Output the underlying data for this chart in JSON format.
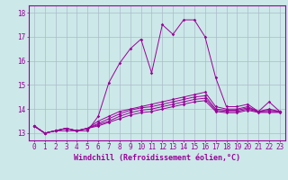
{
  "x": [
    0,
    1,
    2,
    3,
    4,
    5,
    6,
    7,
    8,
    9,
    10,
    11,
    12,
    13,
    14,
    15,
    16,
    17,
    18,
    19,
    20,
    21,
    22,
    23
  ],
  "line1": [
    13.3,
    13.0,
    13.1,
    13.1,
    13.1,
    13.1,
    13.7,
    15.1,
    15.9,
    16.5,
    16.9,
    15.5,
    17.5,
    17.1,
    17.7,
    17.7,
    17.0,
    15.3,
    14.1,
    14.1,
    14.2,
    13.9,
    14.3,
    13.9
  ],
  "line2": [
    13.3,
    13.0,
    13.1,
    13.2,
    13.1,
    13.2,
    13.5,
    13.7,
    13.9,
    14.0,
    14.1,
    14.2,
    14.3,
    14.4,
    14.5,
    14.6,
    14.7,
    14.1,
    14.0,
    14.0,
    14.1,
    13.9,
    14.0,
    13.9
  ],
  "line3": [
    13.3,
    13.0,
    13.1,
    13.2,
    13.1,
    13.2,
    13.4,
    13.6,
    13.8,
    13.95,
    14.05,
    14.1,
    14.2,
    14.3,
    14.4,
    14.5,
    14.55,
    14.0,
    13.95,
    13.95,
    14.05,
    13.9,
    13.95,
    13.9
  ],
  "line4": [
    13.3,
    13.0,
    13.1,
    13.2,
    13.1,
    13.2,
    13.35,
    13.5,
    13.7,
    13.85,
    13.95,
    14.0,
    14.1,
    14.2,
    14.3,
    14.4,
    14.45,
    13.95,
    13.9,
    13.9,
    14.0,
    13.88,
    13.9,
    13.88
  ],
  "line5": [
    13.3,
    13.0,
    13.1,
    13.2,
    13.1,
    13.2,
    13.3,
    13.45,
    13.6,
    13.75,
    13.85,
    13.9,
    14.0,
    14.1,
    14.2,
    14.3,
    14.35,
    13.9,
    13.85,
    13.85,
    13.95,
    13.86,
    13.86,
    13.86
  ],
  "line_color": "#990099",
  "bg_color": "#cce8e8",
  "grid_color": "#aabbcc",
  "xlabel": "Windchill (Refroidissement éolien,°C)",
  "xlabel_fontsize": 6.0,
  "tick_fontsize": 5.5,
  "ylim": [
    12.7,
    18.3
  ],
  "xlim": [
    -0.5,
    23.5
  ],
  "yticks": [
    13,
    14,
    15,
    16,
    17,
    18
  ]
}
